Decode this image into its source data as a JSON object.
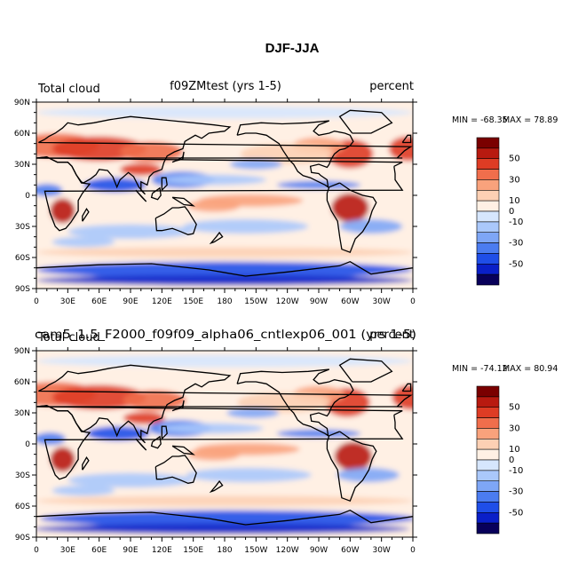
{
  "figure_title": "DJF-JJA",
  "colors": {
    "scale": [
      "#08005a",
      "#0a1fc8",
      "#1f4ee8",
      "#4b7cf0",
      "#7ea6f6",
      "#aac8fb",
      "#d6e6fd",
      "#fff0e4",
      "#fdd0b4",
      "#f9a27c",
      "#f06e4c",
      "#de3c24",
      "#b81a10",
      "#7a0000"
    ],
    "coast": "#000000",
    "tick": "#000000"
  },
  "axis": {
    "lon_ticks": [
      "0",
      "30E",
      "60E",
      "90E",
      "120E",
      "150E",
      "180",
      "150W",
      "120W",
      "90W",
      "60W",
      "30W",
      "0"
    ],
    "lat_ticks": [
      "90N",
      "60N",
      "30N",
      "0",
      "30S",
      "60S",
      "90S"
    ]
  },
  "colorbar": {
    "labels": [
      "50",
      "30",
      "10",
      "0",
      "-10",
      "-30",
      "-50"
    ]
  },
  "chart_data": [
    {
      "type": "heatmap",
      "variable": "Total cloud",
      "title": "f09ZMtest (yrs 1-5)",
      "units": "percent",
      "min_label": "MIN = -68.35",
      "max_label": "MAX =  78.89",
      "xlabel": "",
      "ylabel": "",
      "xlim": [
        0,
        360
      ],
      "ylim": [
        -90,
        90
      ],
      "contour_levels": [
        -60,
        -50,
        -40,
        -30,
        -20,
        -10,
        -5,
        0,
        5,
        10,
        20,
        30,
        40,
        50,
        60
      ]
    },
    {
      "type": "heatmap",
      "variable": "Total cloud",
      "title": "cam5_1.5_F2000_f09f09_alpha06_cntlexp06_001 (yrs 1-5)",
      "units": "percent",
      "min_label": "MIN = -74.12",
      "max_label": "MAX =  80.94",
      "xlabel": "",
      "ylabel": "",
      "xlim": [
        0,
        360
      ],
      "ylim": [
        -90,
        90
      ],
      "contour_levels": [
        -60,
        -50,
        -40,
        -30,
        -20,
        -10,
        -5,
        0,
        5,
        10,
        20,
        30,
        40,
        50,
        60
      ]
    }
  ]
}
